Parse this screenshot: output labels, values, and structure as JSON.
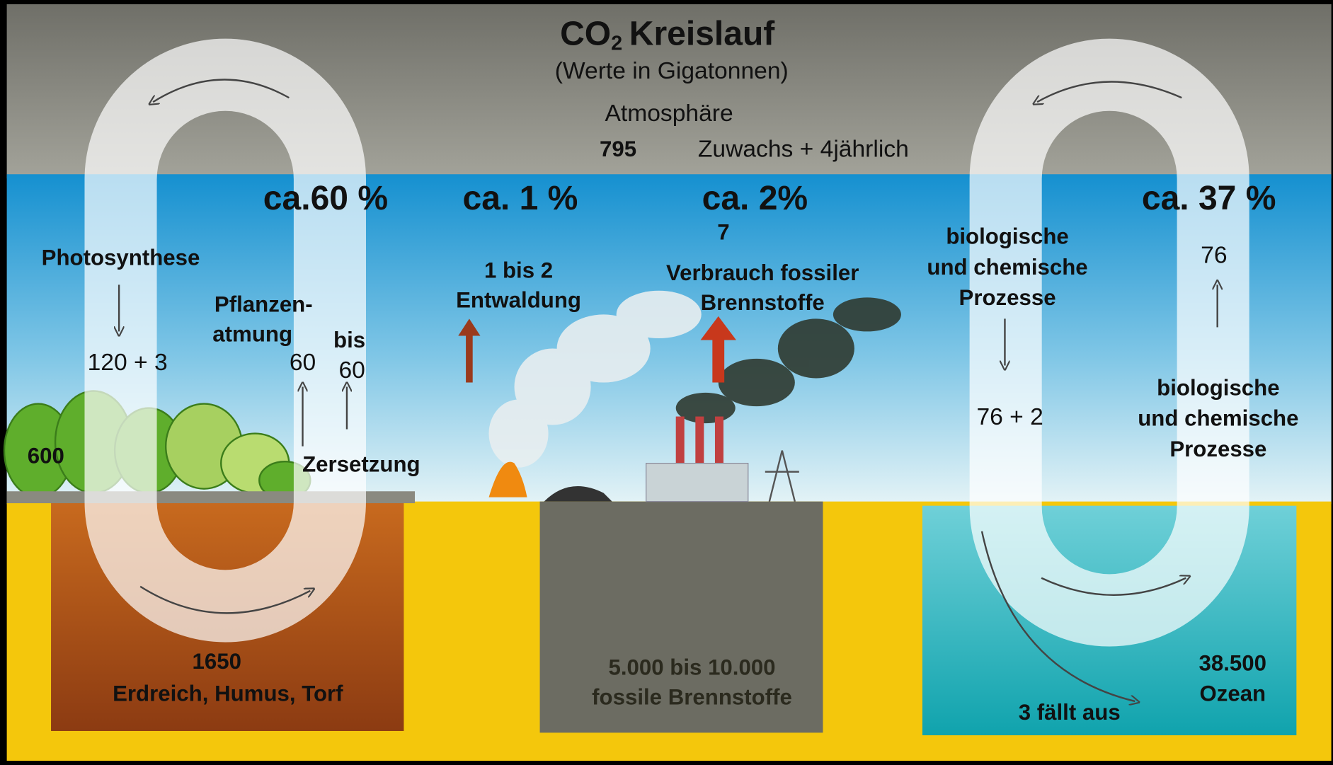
{
  "title": {
    "co": "CO",
    "sub": "2",
    "rest": "Kreislauf"
  },
  "subtitle": "(Werte in Gigatonnen)",
  "atmosphere": {
    "label": "Atmosphäre",
    "value": "795",
    "growth": "Zuwachs + 4jährlich"
  },
  "shares": [
    "ca.60 %",
    "ca. 1 %",
    "ca. 2%",
    "ca. 37 %"
  ],
  "land": {
    "photosynthesis": "Photosynthese",
    "photosynthesis_value": "120 + 3",
    "respiration": [
      "Pflanzen-",
      "atmung"
    ],
    "respiration_value": "60",
    "decomposition_range": [
      "bis",
      "60"
    ],
    "plants": "600",
    "decomposition": "Zersetzung",
    "soil_value": "1650",
    "soil": "Erdreich, Humus, Torf"
  },
  "deforestation": [
    "1 bis 2",
    "Entwaldung"
  ],
  "fossil": {
    "value": "7",
    "consumption": [
      "Verbrauch fossiler",
      "Brennstoffe"
    ],
    "reserve_value": "5.000 bis 10.000",
    "reserve": "fossile Brennstoffe"
  },
  "ocean": {
    "uptake": [
      "biologische",
      "und chemische",
      "Prozesse"
    ],
    "uptake_value": "76 + 2",
    "release_value": "76",
    "release": [
      "biologische",
      "und chemische",
      "Prozesse"
    ],
    "value": "38.500",
    "label": "Ozean",
    "sediment": "3 fällt aus"
  }
}
